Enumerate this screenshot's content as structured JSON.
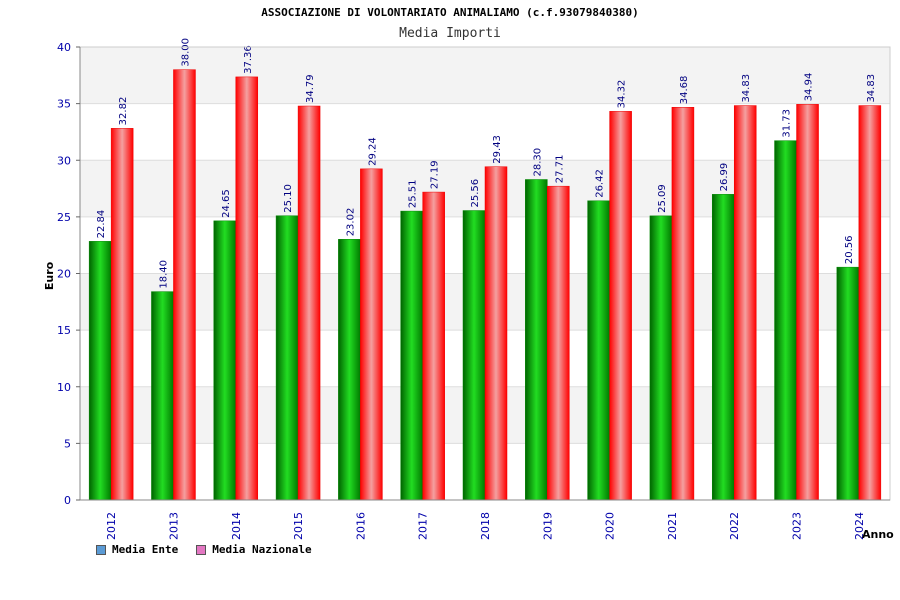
{
  "header": {
    "title": "ASSOCIAZIONE DI VOLONTARIATO ANIMALIAMO (c.f.93079840380)",
    "subtitle": "Media Importi"
  },
  "legend": {
    "series_1": "Media Ente",
    "series_2": "Media Nazionale"
  },
  "chart_data": {
    "type": "bar",
    "title": "ASSOCIAZIONE DI VOLONTARIATO ANIMALIAMO (c.f.93079840380)",
    "subtitle": "Media Importi",
    "xlabel": "Anno",
    "ylabel": "Euro",
    "ylim": [
      0,
      40
    ],
    "yticks": [
      0,
      5,
      10,
      15,
      20,
      25,
      30,
      35,
      40
    ],
    "categories": [
      "2012",
      "2013",
      "2014",
      "2015",
      "2016",
      "2017",
      "2018",
      "2019",
      "2020",
      "2021",
      "2022",
      "2023",
      "2024"
    ],
    "series": [
      {
        "name": "Media Ente",
        "values": [
          22.84,
          18.4,
          24.65,
          25.1,
          23.02,
          25.51,
          25.56,
          28.3,
          26.42,
          25.09,
          26.99,
          31.73,
          20.56
        ],
        "labels": [
          "22.84",
          "18.40",
          "24.65",
          "25.10",
          "23.02",
          "25.51",
          "25.56",
          "28.30",
          "26.42",
          "25.09",
          "26.99",
          "31.73",
          "20.56"
        ],
        "color": "#00b400",
        "legend_color": "#5b9bd5"
      },
      {
        "name": "Media Nazionale",
        "values": [
          32.82,
          38.0,
          37.36,
          34.79,
          29.24,
          27.19,
          29.43,
          27.71,
          34.32,
          34.68,
          34.83,
          34.94,
          34.83
        ],
        "labels": [
          "32.82",
          "38.00",
          "37.36",
          "34.79",
          "29.24",
          "27.19",
          "29.43",
          "27.71",
          "34.32",
          "34.68",
          "34.83",
          "34.94",
          "34.83"
        ],
        "color": "#ff1a1a",
        "legend_color": "#e377c2"
      }
    ]
  }
}
